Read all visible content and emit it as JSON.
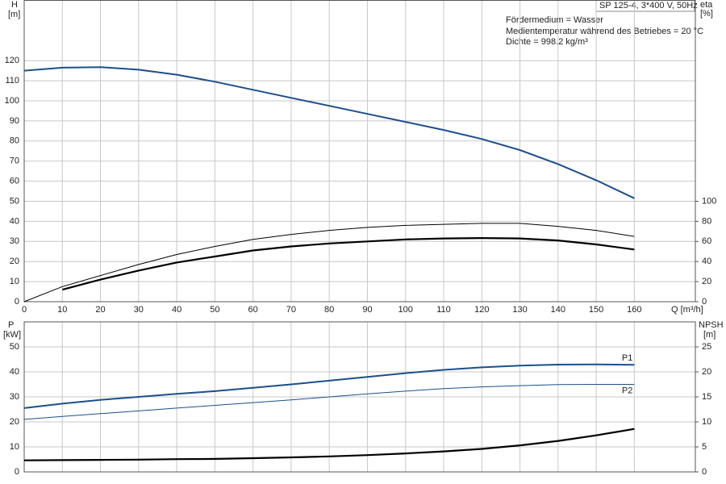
{
  "chart_data": [
    {
      "type": "line",
      "x_label": "Q [m³/h]",
      "y_label": "H",
      "y_unit": "[m]",
      "y2_label": "eta",
      "y2_unit": "[%]",
      "info_box": "SP 125-4, 3*400 V, 50Hz",
      "annotations": [
        "Fördermedium = Wasser",
        "Medientemperatur während des Betriebes = 20 °C",
        "Dichte = 998.2 kg/m³"
      ],
      "x": [
        0,
        10,
        20,
        30,
        40,
        50,
        60,
        70,
        80,
        90,
        100,
        110,
        120,
        130,
        140,
        150,
        160
      ],
      "xlim": [
        0,
        176
      ],
      "xticks": [
        0,
        10,
        20,
        30,
        40,
        50,
        60,
        70,
        80,
        90,
        100,
        110,
        120,
        130,
        140,
        150,
        160
      ],
      "ylim": [
        0,
        150
      ],
      "yticks": [
        0,
        10,
        20,
        30,
        40,
        50,
        60,
        70,
        80,
        90,
        100,
        110,
        120
      ],
      "y2lim": [
        0,
        300
      ],
      "y2ticks": [
        0,
        20,
        40,
        60,
        80,
        100
      ],
      "grid": true,
      "series": [
        {
          "color": "#1c4f8a",
          "values": [
            115,
            116.5,
            116.8,
            115.5,
            113,
            109.5,
            105.5,
            101.5,
            97.5,
            93.5,
            89.5,
            85.5,
            81,
            75.5,
            68.5,
            60.5,
            51.5
          ]
        },
        {
          "color": "#000000",
          "axis": "y2",
          "values": [
            0,
            15,
            26,
            37,
            47,
            55,
            62,
            67,
            71,
            74,
            76,
            77,
            78,
            78,
            75,
            71,
            65
          ]
        },
        {
          "color": "#000000",
          "axis": "y2",
          "values": [
            null,
            12,
            22,
            31,
            39,
            45,
            51,
            55,
            58,
            60,
            62,
            63,
            63.4,
            63,
            61,
            57,
            52
          ]
        }
      ]
    },
    {
      "type": "line",
      "y_label": "P",
      "y_unit": "[kW]",
      "y2_label": "NPSH",
      "y2_unit": "[m]",
      "x": [
        0,
        10,
        20,
        30,
        40,
        50,
        60,
        70,
        80,
        90,
        100,
        110,
        120,
        130,
        140,
        150,
        160
      ],
      "xlim": [
        0,
        176
      ],
      "ylim": [
        0,
        60
      ],
      "yticks": [
        0,
        10,
        20,
        30,
        40,
        50
      ],
      "y2lim": [
        0,
        30
      ],
      "y2ticks": [
        0,
        5,
        10,
        15,
        20,
        25
      ],
      "grid": true,
      "series": [
        {
          "name": "P1",
          "color": "#1c4f8a",
          "values": [
            25.5,
            27.3,
            28.8,
            30,
            31.2,
            32.3,
            33.6,
            35,
            36.5,
            38,
            39.5,
            40.8,
            41.8,
            42.5,
            42.9,
            43,
            42.8
          ]
        },
        {
          "name": "P2",
          "color": "#1c4f8a",
          "values": [
            21,
            22.2,
            23.3,
            24.4,
            25.5,
            26.6,
            27.7,
            28.8,
            30,
            31.2,
            32.3,
            33.3,
            34,
            34.5,
            34.9,
            35,
            35
          ]
        },
        {
          "color": "#000000",
          "axis": "y2",
          "values": [
            2.3,
            2.35,
            2.4,
            2.45,
            2.55,
            2.6,
            2.75,
            2.9,
            3.1,
            3.35,
            3.7,
            4.1,
            4.6,
            5.3,
            6.2,
            7.3,
            8.6
          ]
        }
      ]
    }
  ]
}
